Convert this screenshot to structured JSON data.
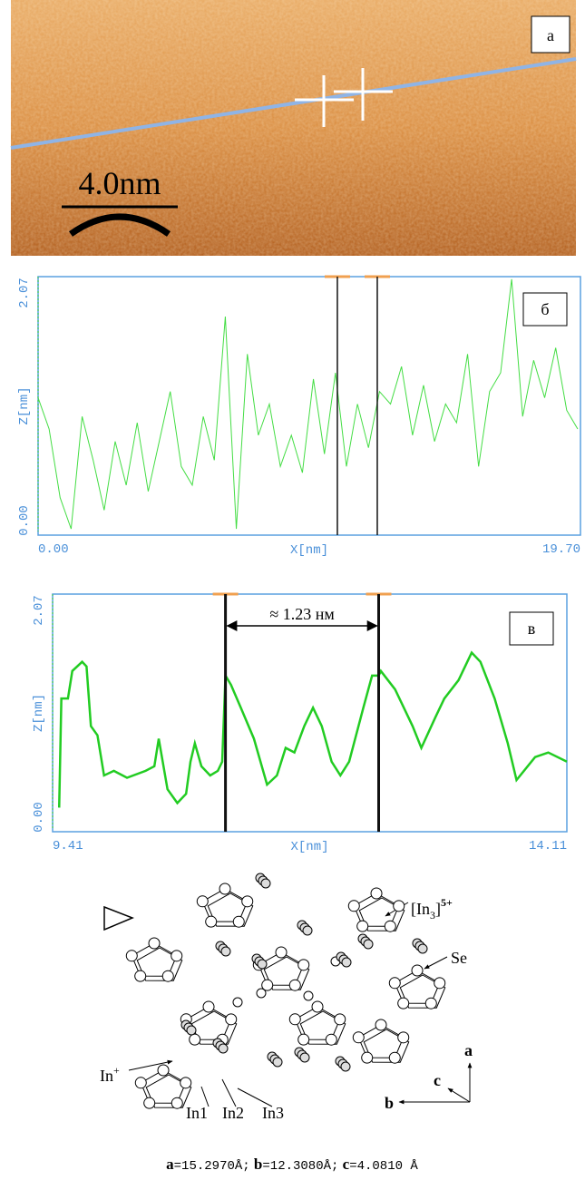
{
  "panel_a": {
    "label": "а",
    "scale_label": "4.0nm"
  },
  "chart_data": [
    {
      "type": "line",
      "label": "б",
      "x_label": "X[nm]",
      "y_label": "Z[nm]",
      "xlim": [
        0,
        19.7
      ],
      "ylim": [
        0,
        2.07
      ],
      "xticks": [
        {
          "value": 0,
          "label": "0.00"
        },
        {
          "value": 19.7,
          "label": "19.70"
        }
      ],
      "yticks": [
        {
          "value": 0,
          "label": "0.00"
        },
        {
          "value": 2.07,
          "label": "2.07"
        }
      ],
      "cursors": [
        10.87,
        12.32
      ],
      "x": [
        0,
        0.4,
        0.8,
        1.2,
        1.6,
        2,
        2.4,
        2.8,
        3.2,
        3.6,
        4,
        4.4,
        4.8,
        5.2,
        5.6,
        6,
        6.4,
        6.8,
        7.2,
        7.6,
        8,
        8.4,
        8.8,
        9.2,
        9.6,
        10,
        10.4,
        10.8,
        11.2,
        11.6,
        12,
        12.4,
        12.8,
        13.2,
        13.6,
        14,
        14.4,
        14.8,
        15.2,
        15.6,
        16,
        16.4,
        16.8,
        17.2,
        17.6,
        18,
        18.4,
        18.8,
        19.2,
        19.6
      ],
      "series": [
        {
          "color": "#44dd44",
          "values": [
            1.1,
            0.85,
            0.3,
            0.05,
            0.95,
            0.6,
            0.2,
            0.75,
            0.4,
            0.9,
            0.35,
            0.75,
            1.15,
            0.55,
            0.4,
            0.95,
            0.6,
            1.75,
            0.05,
            1.45,
            0.8,
            1.05,
            0.55,
            0.8,
            0.5,
            1.25,
            0.65,
            1.3,
            0.55,
            1.05,
            0.7,
            1.15,
            1.05,
            1.35,
            0.8,
            1.2,
            0.75,
            1.05,
            0.9,
            1.45,
            0.55,
            1.15,
            1.3,
            2.05,
            0.95,
            1.4,
            1.1,
            1.5,
            1.0,
            0.85
          ]
        }
      ]
    },
    {
      "type": "line",
      "label": "в",
      "x_label": "X[nm]",
      "y_label": "Z[nm]",
      "annotation": "≈ 1.23 нм",
      "xlim": [
        9.41,
        14.11
      ],
      "ylim": [
        0,
        2.07
      ],
      "xticks": [
        {
          "value": 9.41,
          "label": "9.41"
        },
        {
          "value": 14.11,
          "label": "14.11"
        }
      ],
      "yticks": [
        {
          "value": 0,
          "label": "0.00"
        },
        {
          "value": 2.07,
          "label": "2.07"
        }
      ],
      "cursors": [
        10.99,
        12.39
      ],
      "x": [
        9.47,
        9.49,
        9.55,
        9.59,
        9.68,
        9.72,
        9.76,
        9.82,
        9.88,
        9.97,
        10.09,
        10.26,
        10.34,
        10.38,
        10.46,
        10.55,
        10.63,
        10.67,
        10.71,
        10.77,
        10.85,
        10.92,
        10.96,
        10.99,
        11.04,
        11.13,
        11.25,
        11.37,
        11.46,
        11.54,
        11.62,
        11.71,
        11.79,
        11.87,
        11.96,
        12.04,
        12.12,
        12.25,
        12.33,
        12.39,
        12.41,
        12.54,
        12.7,
        12.78,
        12.91,
        12.99,
        13.12,
        13.24,
        13.32,
        13.45,
        13.57,
        13.65,
        13.82,
        13.94,
        14.11
      ],
      "series": [
        {
          "color": "#22cc22",
          "values": [
            0.21,
            1.16,
            1.16,
            1.4,
            1.48,
            1.44,
            0.92,
            0.84,
            0.49,
            0.53,
            0.47,
            0.53,
            0.57,
            0.81,
            0.37,
            0.25,
            0.33,
            0.61,
            0.77,
            0.57,
            0.49,
            0.53,
            0.61,
            1.36,
            1.28,
            1.08,
            0.81,
            0.41,
            0.49,
            0.73,
            0.69,
            0.92,
            1.08,
            0.92,
            0.61,
            0.49,
            0.61,
            1.08,
            1.36,
            1.36,
            1.4,
            1.24,
            0.92,
            0.73,
            1.0,
            1.16,
            1.32,
            1.56,
            1.48,
            1.16,
            0.77,
            0.45,
            0.65,
            0.69,
            0.61
          ]
        }
      ]
    }
  ],
  "structure": {
    "cluster": {
      "open": "[In",
      "sub": "3",
      "close": "]",
      "sup": "5+"
    },
    "se": "Se",
    "in_plus": {
      "base": "In",
      "sup": "+"
    },
    "sites": [
      "In1",
      "In2",
      "In3"
    ],
    "axes": [
      "a",
      "b",
      "c"
    ],
    "caption": [
      {
        "axis": "a",
        "value": "=15.2970Å;"
      },
      {
        "axis": "b",
        "value": "=12.3080Å;"
      },
      {
        "axis": "c",
        "value": "=4.0810 Å"
      }
    ]
  }
}
